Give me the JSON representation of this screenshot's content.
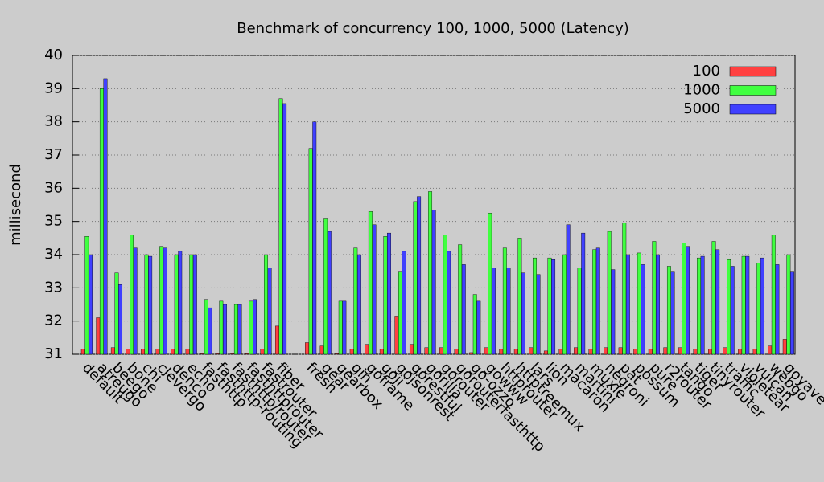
{
  "chart_data": {
    "type": "bar",
    "title": "Benchmark of concurrency 100, 1000, 5000 (Latency)",
    "y_label": "millisecond",
    "categories": [
      "default",
      "atreugo",
      "beego",
      "bone",
      "chi",
      "clevergo",
      "denco",
      "echo",
      "fasthttp",
      "fasthttp-routing",
      "fasthttp/router",
      "fasthttprouter",
      "fastrouter",
      "fiber",
      null,
      "fresh",
      "gear",
      "gearbox",
      "gin",
      "goframe",
      "goji",
      "gojsonrest",
      "gorestful",
      "gorilla",
      "gorouter",
      "gorouterfasthttp",
      "go-ozzo",
      "gowww",
      "httprouter",
      "httptreemux",
      "lars",
      "lion",
      "macaron",
      "martini",
      "muxie",
      "negroni",
      "pat",
      "possum",
      "pure",
      "r2router",
      "tango",
      "tiger",
      "tinyrouter",
      "traffic",
      "violetear",
      "vulcan",
      "webgo",
      "goyave"
    ],
    "series": [
      {
        "name": "100",
        "color": "#ff4040",
        "values": [
          31.15,
          32.1,
          31.2,
          31.15,
          31.15,
          31.15,
          31.15,
          31.15,
          31.02,
          31.02,
          31.02,
          31.02,
          31.15,
          31.85,
          null,
          31.35,
          31.25,
          31.02,
          31.15,
          31.3,
          31.15,
          32.15,
          31.3,
          31.2,
          31.2,
          31.15,
          31.05,
          31.2,
          31.15,
          31.15,
          31.2,
          31.1,
          31.15,
          31.2,
          31.15,
          31.2,
          31.2,
          31.15,
          31.15,
          31.2,
          31.2,
          31.15,
          31.15,
          31.2,
          31.15,
          31.15,
          31.25,
          31.45
        ]
      },
      {
        "name": "1000",
        "color": "#40ff40",
        "values": [
          34.55,
          39.0,
          33.45,
          34.6,
          34.0,
          34.25,
          34.0,
          34.0,
          32.65,
          32.6,
          32.5,
          32.6,
          34.0,
          38.7,
          null,
          37.2,
          35.1,
          32.6,
          34.2,
          35.3,
          34.55,
          33.5,
          35.6,
          35.9,
          34.6,
          34.3,
          32.8,
          35.25,
          34.2,
          34.5,
          33.9,
          33.9,
          34.0,
          33.6,
          34.15,
          34.7,
          34.95,
          34.05,
          34.4,
          33.65,
          34.35,
          33.9,
          34.4,
          33.85,
          33.95,
          33.75,
          34.6,
          34.0
        ]
      },
      {
        "name": "5000",
        "color": "#4040ff",
        "values": [
          34.0,
          39.3,
          33.1,
          34.2,
          33.95,
          34.2,
          34.1,
          34.0,
          32.4,
          32.5,
          32.5,
          32.65,
          33.6,
          38.55,
          null,
          38.0,
          34.7,
          32.6,
          34.0,
          34.9,
          34.65,
          34.1,
          35.75,
          35.35,
          34.1,
          33.7,
          32.6,
          33.6,
          33.6,
          33.45,
          33.4,
          33.85,
          34.9,
          34.65,
          34.2,
          33.55,
          34.0,
          33.7,
          34.0,
          33.5,
          34.25,
          33.95,
          34.15,
          33.65,
          33.95,
          33.9,
          33.7,
          33.5
        ]
      }
    ],
    "ylim": [
      31,
      40
    ],
    "yticks": [
      31,
      32,
      33,
      34,
      35,
      36,
      37,
      38,
      39,
      40
    ],
    "grid": true,
    "legend": "top-right"
  }
}
